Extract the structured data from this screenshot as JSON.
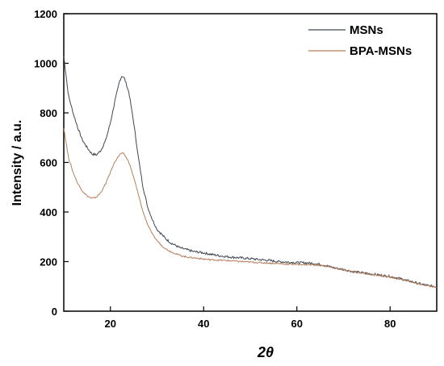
{
  "chart_data": {
    "type": "line",
    "title": "",
    "xlabel": "2θ",
    "ylabel": "Intensity / a.u.",
    "xlim": [
      10,
      90
    ],
    "ylim": [
      0,
      1200
    ],
    "xticks": [
      "20",
      "40",
      "60",
      "80"
    ],
    "yticks": [
      "0",
      "200",
      "400",
      "600",
      "800",
      "1000",
      "1200"
    ],
    "xtick_values": [
      20,
      40,
      60,
      80
    ],
    "ytick_values": [
      0,
      200,
      400,
      600,
      800,
      1000,
      1200
    ],
    "grid": false,
    "legend_position": "top-right",
    "series": [
      {
        "name": "MSNs",
        "color": "#3f4750",
        "x": [
          10,
          11,
          12,
          13,
          14,
          15,
          16,
          17,
          18,
          19,
          20,
          21,
          22,
          22.5,
          23,
          24,
          25,
          26,
          27,
          28,
          29,
          30,
          31,
          32,
          33,
          34,
          35,
          36,
          37,
          38,
          39,
          40,
          42,
          44,
          46,
          48,
          50,
          52,
          54,
          56,
          58,
          60,
          62,
          64,
          66,
          68,
          70,
          72,
          74,
          76,
          78,
          80,
          82,
          84,
          86,
          88,
          90
        ],
        "y": [
          1030,
          870,
          800,
          740,
          690,
          660,
          635,
          630,
          650,
          690,
          760,
          850,
          930,
          950,
          940,
          880,
          760,
          620,
          500,
          420,
          370,
          330,
          310,
          290,
          275,
          265,
          255,
          250,
          245,
          240,
          238,
          235,
          228,
          222,
          218,
          215,
          212,
          208,
          205,
          200,
          198,
          196,
          195,
          192,
          185,
          175,
          168,
          160,
          155,
          150,
          145,
          140,
          132,
          122,
          112,
          104,
          98
        ]
      },
      {
        "name": "BPA-MSNs",
        "color": "#b77e5c",
        "x": [
          10,
          11,
          12,
          13,
          14,
          15,
          16,
          17,
          18,
          19,
          20,
          21,
          22,
          22.5,
          23,
          24,
          25,
          26,
          27,
          28,
          29,
          30,
          31,
          32,
          33,
          34,
          35,
          36,
          37,
          38,
          39,
          40,
          42,
          44,
          46,
          48,
          50,
          52,
          54,
          56,
          58,
          60,
          62,
          64,
          66,
          68,
          70,
          72,
          74,
          76,
          78,
          80,
          82,
          84,
          86,
          88,
          90
        ],
        "y": [
          740,
          620,
          560,
          515,
          485,
          465,
          455,
          460,
          480,
          515,
          560,
          605,
          632,
          638,
          632,
          600,
          540,
          470,
          400,
          350,
          310,
          285,
          265,
          250,
          240,
          232,
          225,
          220,
          217,
          215,
          213,
          210,
          207,
          205,
          203,
          200,
          198,
          196,
          194,
          192,
          190,
          189,
          188,
          186,
          182,
          174,
          166,
          160,
          154,
          148,
          143,
          138,
          130,
          121,
          111,
          103,
          97
        ]
      }
    ]
  }
}
